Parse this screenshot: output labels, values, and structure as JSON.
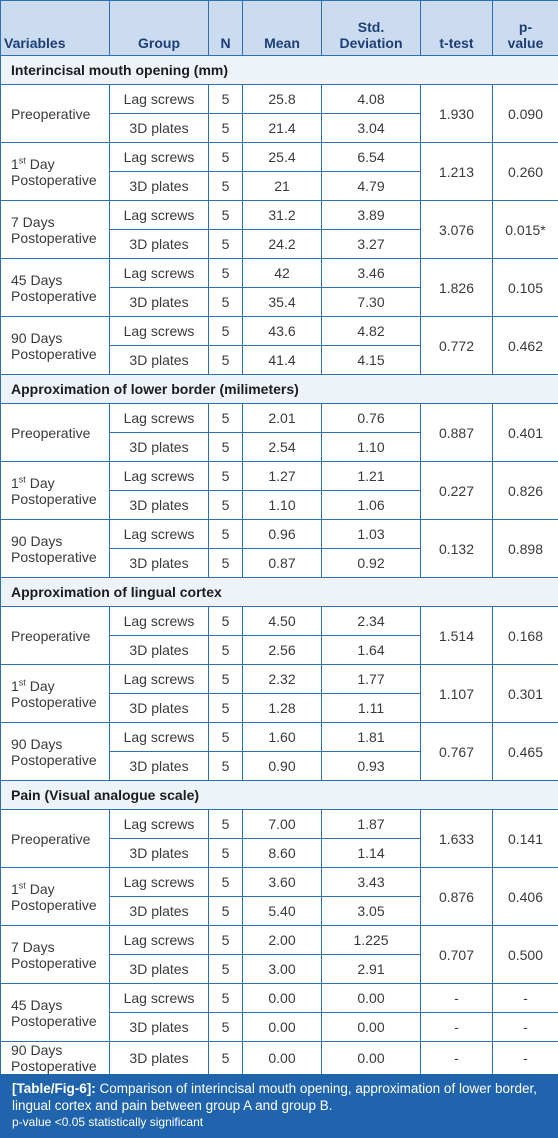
{
  "table": {
    "headers": {
      "variables": "Variables",
      "group": "Group",
      "n": "N",
      "mean": "Mean",
      "sd_line1": "Std.",
      "sd_line2": "Deviation",
      "ttest": "t-test",
      "pvalue_line1": "p-",
      "pvalue_line2": "value"
    },
    "sections": [
      {
        "title": "Interincisal mouth opening (mm)",
        "blocks": [
          {
            "label": "Preoperative",
            "ttest": "1.930",
            "p": "0.090",
            "rows": [
              {
                "group": "Lag screws",
                "n": "5",
                "mean": "25.8",
                "sd": "4.08"
              },
              {
                "group": "3D plates",
                "n": "5",
                "mean": "21.4",
                "sd": "3.04"
              }
            ]
          },
          {
            "label_pre": "1",
            "label_sup": "st",
            "label_post": " Day",
            "label2": "Postoperative",
            "ttest": "1.213",
            "p": "0.260",
            "rows": [
              {
                "group": "Lag screws",
                "n": "5",
                "mean": "25.4",
                "sd": "6.54"
              },
              {
                "group": "3D plates",
                "n": "5",
                "mean": "21",
                "sd": "4.79"
              }
            ]
          },
          {
            "label": "7 Days",
            "label2": "Postoperative",
            "ttest": "3.076",
            "p": "0.015*",
            "rows": [
              {
                "group": "Lag screws",
                "n": "5",
                "mean": "31.2",
                "sd": "3.89"
              },
              {
                "group": "3D plates",
                "n": "5",
                "mean": "24.2",
                "sd": "3.27"
              }
            ]
          },
          {
            "label": "45 Days",
            "label2": "Postoperative",
            "ttest": "1.826",
            "p": "0.105",
            "rows": [
              {
                "group": "Lag screws",
                "n": "5",
                "mean": "42",
                "sd": "3.46"
              },
              {
                "group": "3D plates",
                "n": "5",
                "mean": "35.4",
                "sd": "7.30"
              }
            ]
          },
          {
            "label": "90 Days",
            "label2": "Postoperative",
            "ttest": "0.772",
            "p": "0.462",
            "rows": [
              {
                "group": "Lag screws",
                "n": "5",
                "mean": "43.6",
                "sd": "4.82"
              },
              {
                "group": "3D plates",
                "n": "5",
                "mean": "41.4",
                "sd": "4.15"
              }
            ]
          }
        ]
      },
      {
        "title": "Approximation of lower border (milimeters)",
        "blocks": [
          {
            "label": "Preoperative",
            "ttest": "0.887",
            "p": "0.401",
            "rows": [
              {
                "group": "Lag screws",
                "n": "5",
                "mean": "2.01",
                "sd": "0.76"
              },
              {
                "group": "3D plates",
                "n": "5",
                "mean": "2.54",
                "sd": "1.10"
              }
            ]
          },
          {
            "label_pre": "1",
            "label_sup": "st",
            "label_post": " Day",
            "label2": "Postoperative",
            "ttest": "0.227",
            "p": "0.826",
            "rows": [
              {
                "group": "Lag screws",
                "n": "5",
                "mean": "1.27",
                "sd": "1.21"
              },
              {
                "group": "3D plates",
                "n": "5",
                "mean": "1.10",
                "sd": "1.06"
              }
            ]
          },
          {
            "label": "90 Days",
            "label2": "Postoperative",
            "ttest": "0.132",
            "p": "0.898",
            "rows": [
              {
                "group": "Lag screws",
                "n": "5",
                "mean": "0.96",
                "sd": "1.03"
              },
              {
                "group": "3D plates",
                "n": "5",
                "mean": "0.87",
                "sd": "0.92"
              }
            ]
          }
        ]
      },
      {
        "title": "Approximation of lingual cortex",
        "blocks": [
          {
            "label": "Preoperative",
            "ttest": "1.514",
            "p": "0.168",
            "rows": [
              {
                "group": "Lag screws",
                "n": "5",
                "mean": "4.50",
                "sd": "2.34"
              },
              {
                "group": "3D plates",
                "n": "5",
                "mean": "2.56",
                "sd": "1.64"
              }
            ]
          },
          {
            "label_pre": "1",
            "label_sup": "st",
            "label_post": " Day",
            "label2": "Postoperative",
            "ttest": "1.107",
            "p": "0.301",
            "rows": [
              {
                "group": "Lag screws",
                "n": "5",
                "mean": "2.32",
                "sd": "1.77"
              },
              {
                "group": "3D plates",
                "n": "5",
                "mean": "1.28",
                "sd": "1.11"
              }
            ]
          },
          {
            "label": "90 Days",
            "label2": "Postoperative",
            "ttest": "0.767",
            "p": "0.465",
            "rows": [
              {
                "group": "Lag screws",
                "n": "5",
                "mean": "1.60",
                "sd": "1.81"
              },
              {
                "group": "3D plates",
                "n": "5",
                "mean": "0.90",
                "sd": "0.93"
              }
            ]
          }
        ]
      },
      {
        "title": "Pain (Visual analogue scale)",
        "blocks": [
          {
            "label": "Preoperative",
            "ttest": "1.633",
            "p": "0.141",
            "rows": [
              {
                "group": "Lag screws",
                "n": "5",
                "mean": "7.00",
                "sd": "1.87"
              },
              {
                "group": "3D plates",
                "n": "5",
                "mean": "8.60",
                "sd": "1.14"
              }
            ]
          },
          {
            "label_pre": "1",
            "label_sup": "st",
            "label_post": " Day",
            "label2": "Postoperative",
            "ttest": "0.876",
            "p": "0.406",
            "rows": [
              {
                "group": "Lag screws",
                "n": "5",
                "mean": "3.60",
                "sd": "3.43"
              },
              {
                "group": "3D plates",
                "n": "5",
                "mean": "5.40",
                "sd": "3.05"
              }
            ]
          },
          {
            "label": "7 Days",
            "label2": "Postoperative",
            "ttest": "0.707",
            "p": "0.500",
            "rows": [
              {
                "group": "Lag screws",
                "n": "5",
                "mean": "2.00",
                "sd": "1.225"
              },
              {
                "group": "3D plates",
                "n": "5",
                "mean": "3.00",
                "sd": "2.91"
              }
            ]
          },
          {
            "label": "45 Days",
            "label2": "Postoperative",
            "ttest": "-",
            "p": "-",
            "rows": [
              {
                "group": "Lag screws",
                "n": "5",
                "mean": "0.00",
                "sd": "0.00",
                "ttest": "-",
                "p": "-"
              },
              {
                "group": "3D plates",
                "n": "5",
                "mean": "0.00",
                "sd": "0.00",
                "ttest": "-",
                "p": "-"
              }
            ]
          },
          {
            "label": "90 Days",
            "label2": "Postoperative",
            "ttest": "-",
            "p": "-",
            "rows": [
              {
                "group": "3D plates",
                "n": "5",
                "mean": "0.00",
                "sd": "0.00"
              }
            ]
          }
        ]
      }
    ]
  },
  "caption": {
    "label": "[Table/Fig-6]:",
    "text": " Comparison of interincisal mouth opening, approximation of lower border, lingual cortex and pain between group A and group B.",
    "note": "p-value <0.05 statistically significant"
  },
  "colors": {
    "border": "#2d6fb4",
    "header_bg": "#ccdcf0",
    "header_text": "#1d3f77",
    "caption_bg": "#1f64ad"
  }
}
